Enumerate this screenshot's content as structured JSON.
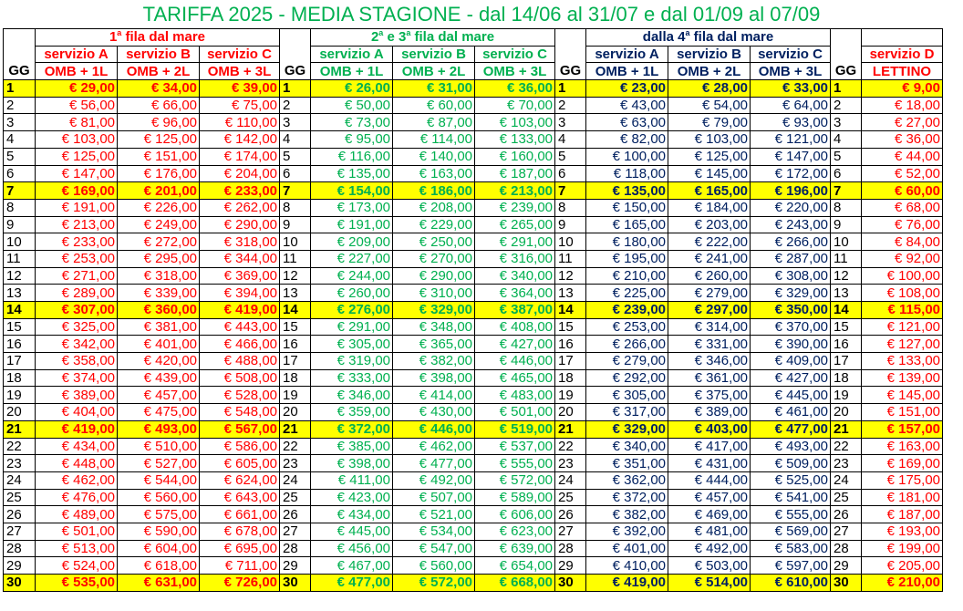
{
  "title": "TARIFFA 2025 - MEDIA STAGIONE - dal 14/06 al 31/07 e dal 01/09 al 07/09",
  "groups": [
    {
      "label_pre": "1",
      "label_sup": "a",
      "label_post": " fila dal mare",
      "color": "red",
      "services": [
        "servizio A",
        "servizio B",
        "servizio C"
      ],
      "items": [
        "OMB + 1L",
        "OMB + 2L",
        "OMB + 3L"
      ]
    },
    {
      "label_pre": "2",
      "label_sup": "a",
      "label_post": " e 3",
      "label_sup2": "a",
      "label_post2": " fila dal mare",
      "color": "green",
      "services": [
        "servizio A",
        "servizio B",
        "servizio C"
      ],
      "items": [
        "OMB + 1L",
        "OMB + 2L",
        "OMB + 3L"
      ]
    },
    {
      "label_pre": "dalla 4",
      "label_sup": "a",
      "label_post": " fila dal mare",
      "color": "blue",
      "services": [
        "servizio A",
        "servizio B",
        "servizio C"
      ],
      "items": [
        "OMB + 1L",
        "OMB + 2L",
        "OMB + 3L"
      ]
    },
    {
      "label_pre": "",
      "label_sup": "",
      "label_post": "",
      "color": "red",
      "services": [
        "servizio D"
      ],
      "items": [
        "LETTINO"
      ]
    }
  ],
  "gg_label": "GG",
  "highlight_days": [
    1,
    7,
    14,
    21,
    30
  ],
  "rows": [
    {
      "gg": "1",
      "v": [
        "€ 29,00",
        "€ 34,00",
        "€ 39,00",
        "€ 26,00",
        "€ 31,00",
        "€ 36,00",
        "€ 23,00",
        "€ 28,00",
        "€ 33,00",
        "€ 9,00"
      ]
    },
    {
      "gg": "2",
      "v": [
        "€ 56,00",
        "€ 66,00",
        "€ 75,00",
        "€ 50,00",
        "€ 60,00",
        "€ 70,00",
        "€ 43,00",
        "€ 54,00",
        "€ 64,00",
        "€ 18,00"
      ]
    },
    {
      "gg": "3",
      "v": [
        "€ 81,00",
        "€ 96,00",
        "€ 110,00",
        "€ 73,00",
        "€ 87,00",
        "€ 103,00",
        "€ 63,00",
        "€ 79,00",
        "€ 93,00",
        "€ 27,00"
      ]
    },
    {
      "gg": "4",
      "v": [
        "€ 103,00",
        "€ 125,00",
        "€ 142,00",
        "€ 95,00",
        "€ 114,00",
        "€ 133,00",
        "€ 82,00",
        "€ 103,00",
        "€ 121,00",
        "€ 36,00"
      ]
    },
    {
      "gg": "5",
      "v": [
        "€ 125,00",
        "€ 151,00",
        "€ 174,00",
        "€ 116,00",
        "€ 140,00",
        "€ 160,00",
        "€ 100,00",
        "€ 125,00",
        "€ 147,00",
        "€ 44,00"
      ]
    },
    {
      "gg": "6",
      "v": [
        "€ 147,00",
        "€ 176,00",
        "€ 204,00",
        "€ 135,00",
        "€ 163,00",
        "€ 187,00",
        "€ 118,00",
        "€ 145,00",
        "€ 172,00",
        "€ 52,00"
      ]
    },
    {
      "gg": "7",
      "v": [
        "€ 169,00",
        "€ 201,00",
        "€ 233,00",
        "€ 154,00",
        "€ 186,00",
        "€ 213,00",
        "€ 135,00",
        "€ 165,00",
        "€ 196,00",
        "€ 60,00"
      ]
    },
    {
      "gg": "8",
      "v": [
        "€ 191,00",
        "€ 226,00",
        "€ 262,00",
        "€ 173,00",
        "€ 208,00",
        "€ 239,00",
        "€ 150,00",
        "€ 184,00",
        "€ 220,00",
        "€ 68,00"
      ]
    },
    {
      "gg": "9",
      "v": [
        "€ 213,00",
        "€ 249,00",
        "€ 290,00",
        "€ 191,00",
        "€ 229,00",
        "€ 265,00",
        "€ 165,00",
        "€ 203,00",
        "€ 243,00",
        "€ 76,00"
      ]
    },
    {
      "gg": "10",
      "v": [
        "€ 233,00",
        "€ 272,00",
        "€ 318,00",
        "€ 209,00",
        "€ 250,00",
        "€ 291,00",
        "€ 180,00",
        "€ 222,00",
        "€ 266,00",
        "€ 84,00"
      ]
    },
    {
      "gg": "11",
      "v": [
        "€ 253,00",
        "€ 295,00",
        "€ 344,00",
        "€ 227,00",
        "€ 270,00",
        "€ 316,00",
        "€ 195,00",
        "€ 241,00",
        "€ 287,00",
        "€ 92,00"
      ]
    },
    {
      "gg": "12",
      "v": [
        "€ 271,00",
        "€ 318,00",
        "€ 369,00",
        "€ 244,00",
        "€ 290,00",
        "€ 340,00",
        "€ 210,00",
        "€ 260,00",
        "€ 308,00",
        "€ 100,00"
      ]
    },
    {
      "gg": "13",
      "v": [
        "€ 289,00",
        "€ 339,00",
        "€ 394,00",
        "€ 260,00",
        "€ 310,00",
        "€ 364,00",
        "€ 225,00",
        "€ 279,00",
        "€ 329,00",
        "€ 108,00"
      ]
    },
    {
      "gg": "14",
      "v": [
        "€ 307,00",
        "€ 360,00",
        "€ 419,00",
        "€ 276,00",
        "€ 329,00",
        "€ 387,00",
        "€ 239,00",
        "€ 297,00",
        "€ 350,00",
        "€ 115,00"
      ]
    },
    {
      "gg": "15",
      "v": [
        "€ 325,00",
        "€ 381,00",
        "€ 443,00",
        "€ 291,00",
        "€ 348,00",
        "€ 408,00",
        "€ 253,00",
        "€ 314,00",
        "€ 370,00",
        "€ 121,00"
      ]
    },
    {
      "gg": "16",
      "v": [
        "€ 342,00",
        "€ 401,00",
        "€ 466,00",
        "€ 305,00",
        "€ 365,00",
        "€ 427,00",
        "€ 266,00",
        "€ 331,00",
        "€ 390,00",
        "€ 127,00"
      ]
    },
    {
      "gg": "17",
      "v": [
        "€ 358,00",
        "€ 420,00",
        "€ 488,00",
        "€ 319,00",
        "€ 382,00",
        "€ 446,00",
        "€ 279,00",
        "€ 346,00",
        "€ 409,00",
        "€ 133,00"
      ]
    },
    {
      "gg": "18",
      "v": [
        "€ 374,00",
        "€ 439,00",
        "€ 508,00",
        "€ 333,00",
        "€ 398,00",
        "€ 465,00",
        "€ 292,00",
        "€ 361,00",
        "€ 427,00",
        "€ 139,00"
      ]
    },
    {
      "gg": "19",
      "v": [
        "€ 389,00",
        "€ 457,00",
        "€ 528,00",
        "€ 346,00",
        "€ 414,00",
        "€ 483,00",
        "€ 305,00",
        "€ 375,00",
        "€ 445,00",
        "€ 145,00"
      ]
    },
    {
      "gg": "20",
      "v": [
        "€ 404,00",
        "€ 475,00",
        "€ 548,00",
        "€ 359,00",
        "€ 430,00",
        "€ 501,00",
        "€ 317,00",
        "€ 389,00",
        "€ 461,00",
        "€ 151,00"
      ]
    },
    {
      "gg": "21",
      "v": [
        "€ 419,00",
        "€ 493,00",
        "€ 567,00",
        "€ 372,00",
        "€ 446,00",
        "€ 519,00",
        "€ 329,00",
        "€ 403,00",
        "€ 477,00",
        "€ 157,00"
      ]
    },
    {
      "gg": "22",
      "v": [
        "€ 434,00",
        "€ 510,00",
        "€ 586,00",
        "€ 385,00",
        "€ 462,00",
        "€ 537,00",
        "€ 340,00",
        "€ 417,00",
        "€ 493,00",
        "€ 163,00"
      ]
    },
    {
      "gg": "23",
      "v": [
        "€ 448,00",
        "€ 527,00",
        "€ 605,00",
        "€ 398,00",
        "€ 477,00",
        "€ 555,00",
        "€ 351,00",
        "€ 431,00",
        "€ 509,00",
        "€ 169,00"
      ]
    },
    {
      "gg": "24",
      "v": [
        "€ 462,00",
        "€ 544,00",
        "€ 624,00",
        "€ 411,00",
        "€ 492,00",
        "€ 572,00",
        "€ 362,00",
        "€ 444,00",
        "€ 525,00",
        "€ 175,00"
      ]
    },
    {
      "gg": "25",
      "v": [
        "€ 476,00",
        "€ 560,00",
        "€ 643,00",
        "€ 423,00",
        "€ 507,00",
        "€ 589,00",
        "€ 372,00",
        "€ 457,00",
        "€ 541,00",
        "€ 181,00"
      ]
    },
    {
      "gg": "26",
      "v": [
        "€ 489,00",
        "€ 575,00",
        "€ 661,00",
        "€ 434,00",
        "€ 521,00",
        "€ 606,00",
        "€ 382,00",
        "€ 469,00",
        "€ 555,00",
        "€ 187,00"
      ]
    },
    {
      "gg": "27",
      "v": [
        "€ 501,00",
        "€ 590,00",
        "€ 678,00",
        "€ 445,00",
        "€ 534,00",
        "€ 623,00",
        "€ 392,00",
        "€ 481,00",
        "€ 569,00",
        "€ 193,00"
      ]
    },
    {
      "gg": "28",
      "v": [
        "€ 513,00",
        "€ 604,00",
        "€ 695,00",
        "€ 456,00",
        "€ 547,00",
        "€ 639,00",
        "€ 401,00",
        "€ 492,00",
        "€ 583,00",
        "€ 199,00"
      ]
    },
    {
      "gg": "29",
      "v": [
        "€ 524,00",
        "€ 618,00",
        "€ 711,00",
        "€ 467,00",
        "€ 560,00",
        "€ 654,00",
        "€ 410,00",
        "€ 503,00",
        "€ 597,00",
        "€ 205,00"
      ]
    },
    {
      "gg": "30",
      "v": [
        "€ 535,00",
        "€ 631,00",
        "€ 726,00",
        "€ 477,00",
        "€ 572,00",
        "€ 668,00",
        "€ 419,00",
        "€ 514,00",
        "€ 610,00",
        "€ 210,00"
      ]
    }
  ],
  "colors": {
    "red": "#ff0000",
    "green": "#00b050",
    "blue": "#002060",
    "highlight": "#ffff00"
  }
}
